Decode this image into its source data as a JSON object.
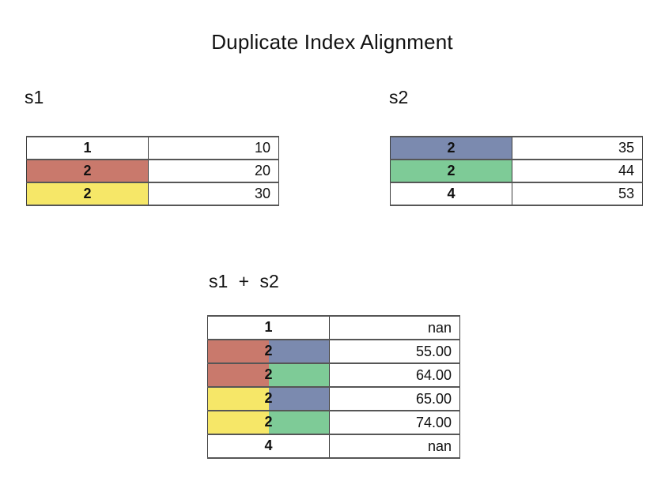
{
  "title": "Duplicate Index Alignment",
  "palette": {
    "s1_dup_first": "#C9796C",
    "s1_dup_second": "#F6E768",
    "s2_dup_first": "#7B8AAF",
    "s2_dup_second": "#7ECB97",
    "plain": "#FFFFFF"
  },
  "tables": {
    "s1": {
      "label": "s1",
      "rows": [
        {
          "index": "1",
          "value": "10",
          "left": "#FFFFFF",
          "right": "#FFFFFF"
        },
        {
          "index": "2",
          "value": "20",
          "left": "#C9796C",
          "right": "#C9796C"
        },
        {
          "index": "2",
          "value": "30",
          "left": "#F6E768",
          "right": "#F6E768"
        }
      ]
    },
    "s2": {
      "label": "s2",
      "rows": [
        {
          "index": "2",
          "value": "35",
          "left": "#7B8AAF",
          "right": "#7B8AAF"
        },
        {
          "index": "2",
          "value": "44",
          "left": "#7ECB97",
          "right": "#7ECB97"
        },
        {
          "index": "4",
          "value": "53",
          "left": "#FFFFFF",
          "right": "#FFFFFF"
        }
      ]
    },
    "sum": {
      "label": "s1 + s2",
      "rows": [
        {
          "index": "1",
          "value": "nan",
          "left": "#FFFFFF",
          "right": "#FFFFFF"
        },
        {
          "index": "2",
          "value": "55.00",
          "left": "#C9796C",
          "right": "#7B8AAF"
        },
        {
          "index": "2",
          "value": "64.00",
          "left": "#C9796C",
          "right": "#7ECB97"
        },
        {
          "index": "2",
          "value": "65.00",
          "left": "#F6E768",
          "right": "#7B8AAF"
        },
        {
          "index": "2",
          "value": "74.00",
          "left": "#F6E768",
          "right": "#7ECB97"
        },
        {
          "index": "4",
          "value": "nan",
          "left": "#FFFFFF",
          "right": "#FFFFFF"
        }
      ]
    }
  }
}
